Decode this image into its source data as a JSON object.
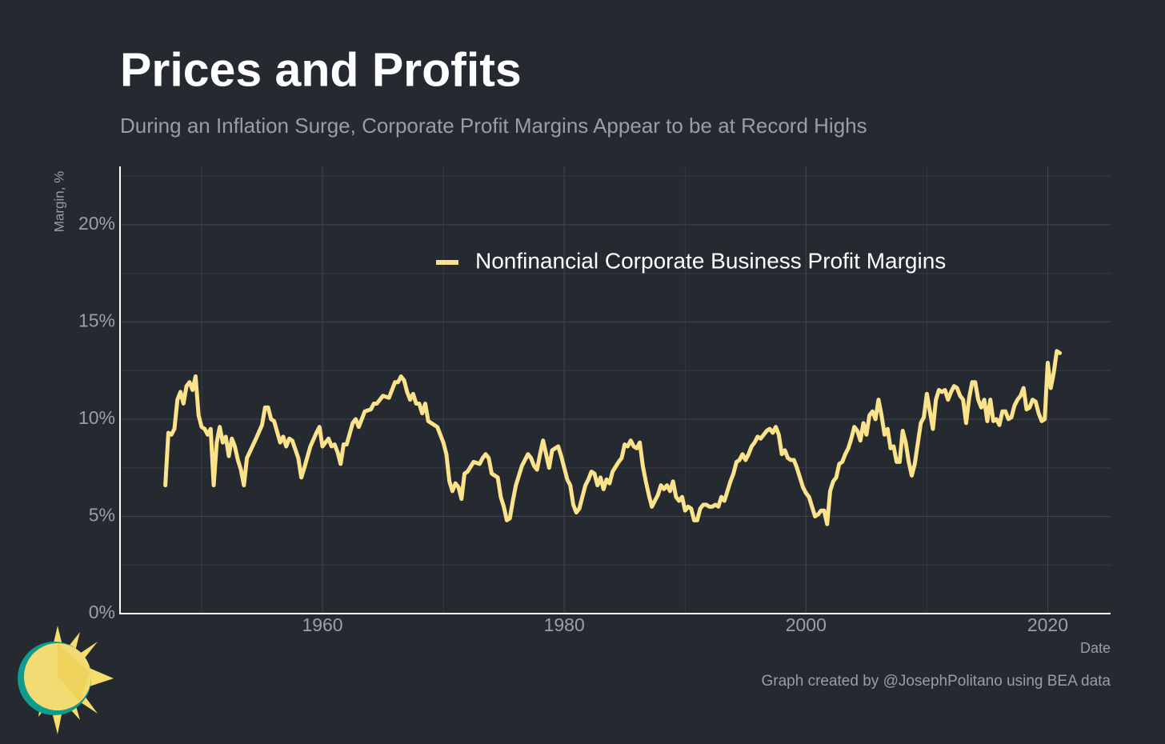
{
  "chart_data": {
    "type": "line",
    "title": "Prices and Profits",
    "subtitle": "During an Inflation Surge, Corporate Profit Margins Appear to be at Record Highs",
    "y_label": "Margin, %",
    "x_label": "Date",
    "caption": "Graph created by @JosephPolitano using BEA data",
    "xlim": [
      1943.25,
      2025.2
    ],
    "ylim": [
      0,
      23
    ],
    "xticks": [
      1960,
      1980,
      2000,
      2020
    ],
    "x_minor_grid": [
      1950,
      1970,
      1990,
      2010
    ],
    "yticks": [
      {
        "value": 0,
        "label": "0%"
      },
      {
        "value": 5,
        "label": "5%"
      },
      {
        "value": 10,
        "label": "10%"
      },
      {
        "value": 15,
        "label": "15%"
      },
      {
        "value": 20,
        "label": "20%"
      }
    ],
    "y_minor_grid": [
      2.5,
      7.5,
      12.5,
      17.5,
      22.5
    ],
    "grid": true,
    "legend": "top-center",
    "x": [
      1947,
      1947.25,
      1947.5,
      1947.75,
      1948,
      1948.25,
      1948.5,
      1948.75,
      1949,
      1949.25,
      1949.5,
      1949.75,
      1950,
      1950.25,
      1950.5,
      1950.75,
      1951,
      1951.25,
      1951.5,
      1951.75,
      1952,
      1952.25,
      1952.5,
      1952.75,
      1953,
      1953.25,
      1953.5,
      1953.75,
      1954.5,
      1955,
      1955.25,
      1955.5,
      1955.75,
      1956,
      1956.5,
      1956.75,
      1957,
      1957.25,
      1957.5,
      1958,
      1958.25,
      1958.5,
      1959,
      1959.5,
      1959.75,
      1960,
      1960.25,
      1960.5,
      1960.75,
      1961,
      1961.25,
      1961.5,
      1961.75,
      1962,
      1962.5,
      1962.75,
      1963,
      1963.5,
      1964,
      1964.25,
      1964.5,
      1965,
      1965.5,
      1966,
      1966.25,
      1966.5,
      1966.75,
      1967,
      1967.25,
      1967.5,
      1967.75,
      1968,
      1968.25,
      1968.5,
      1968.75,
      1969.5,
      1970,
      1970.25,
      1970.5,
      1970.75,
      1971,
      1971.25,
      1971.5,
      1971.75,
      1972,
      1972.5,
      1973,
      1973.25,
      1973.5,
      1973.75,
      1974,
      1974.5,
      1974.75,
      1975,
      1975.25,
      1975.5,
      1975.75,
      1976,
      1976.5,
      1977,
      1977.25,
      1977.5,
      1977.75,
      1978,
      1978.25,
      1978.5,
      1978.75,
      1979,
      1979.5,
      1979.75,
      1980,
      1980.25,
      1980.5,
      1980.75,
      1981,
      1981.25,
      1981.5,
      1981.75,
      1982,
      1982.25,
      1982.5,
      1982.75,
      1983,
      1983.25,
      1983.5,
      1983.75,
      1984,
      1984.5,
      1984.75,
      1985,
      1985.25,
      1985.5,
      1985.75,
      1986,
      1986.25,
      1986.5,
      1986.75,
      1987,
      1987.25,
      1987.5,
      1987.75,
      1988,
      1988.25,
      1988.5,
      1988.75,
      1989,
      1989.25,
      1989.5,
      1989.75,
      1990,
      1990.25,
      1990.5,
      1990.75,
      1991,
      1991.25,
      1991.5,
      1991.75,
      1992,
      1992.25,
      1992.5,
      1992.75,
      1993,
      1993.25,
      1993.5,
      1993.75,
      1994,
      1994.25,
      1994.5,
      1994.75,
      1995,
      1995.25,
      1995.5,
      1995.75,
      1996,
      1996.25,
      1996.5,
      1996.75,
      1997,
      1997.25,
      1997.5,
      1997.75,
      1998,
      1998.25,
      1998.5,
      1998.75,
      1999,
      1999.25,
      1999.5,
      1999.75,
      2000,
      2000.25,
      2000.5,
      2000.75,
      2001,
      2001.25,
      2001.5,
      2001.75,
      2002,
      2002.25,
      2002.5,
      2002.75,
      2003,
      2003.25,
      2003.5,
      2003.75,
      2004,
      2004.25,
      2004.5,
      2004.75,
      2005,
      2005.25,
      2005.5,
      2005.75,
      2006,
      2006.25,
      2006.5,
      2006.75,
      2007,
      2007.25,
      2007.5,
      2007.75,
      2008,
      2008.25,
      2008.5,
      2008.75,
      2009,
      2009.5,
      2009.75,
      2010,
      2010.25,
      2010.5,
      2010.75,
      2011,
      2011.25,
      2011.5,
      2011.75,
      2012,
      2012.25,
      2012.5,
      2012.75,
      2013,
      2013.25,
      2013.5,
      2013.75,
      2014,
      2014.25,
      2014.5,
      2014.75,
      2015,
      2015.25,
      2015.5,
      2015.75,
      2016,
      2016.25,
      2016.5,
      2016.75,
      2017,
      2017.25,
      2017.5,
      2017.75,
      2018,
      2018.25,
      2018.5,
      2018.75,
      2019,
      2019.25,
      2019.5,
      2019.75,
      2020,
      2020.25,
      2020.5,
      2020.75,
      2021
    ],
    "series": [
      {
        "name": "Nonfinancial Corporate Business Profit Margins",
        "color": "#fbe38c",
        "values": [
          6.6,
          9.3,
          9.2,
          9.5,
          11.0,
          11.4,
          10.8,
          11.7,
          11.9,
          11.5,
          12.2,
          10.2,
          9.6,
          9.5,
          9.2,
          9.5,
          6.6,
          8.8,
          9.6,
          8.8,
          9.1,
          8.1,
          9.0,
          8.6,
          7.9,
          7.4,
          6.6,
          8.0,
          9.0,
          9.7,
          10.6,
          10.6,
          10.0,
          9.9,
          8.8,
          9.1,
          8.6,
          9.0,
          8.9,
          8.0,
          7.0,
          7.5,
          8.6,
          9.3,
          9.6,
          8.6,
          8.8,
          9.0,
          8.6,
          8.7,
          8.3,
          7.7,
          8.7,
          8.7,
          9.8,
          10.0,
          9.6,
          10.4,
          10.5,
          10.8,
          10.8,
          11.2,
          11.1,
          11.9,
          11.9,
          12.2,
          12.0,
          11.4,
          11.0,
          11.3,
          10.8,
          10.8,
          10.3,
          10.8,
          9.9,
          9.6,
          8.8,
          8.2,
          6.8,
          6.3,
          6.7,
          6.5,
          5.9,
          7.2,
          7.3,
          7.8,
          7.7,
          8.0,
          8.2,
          8.0,
          7.2,
          7.0,
          6.0,
          5.5,
          4.8,
          4.9,
          5.8,
          6.6,
          7.6,
          8.2,
          8.0,
          7.6,
          7.4,
          8.2,
          8.9,
          8.2,
          7.5,
          8.4,
          8.6,
          8.1,
          7.5,
          6.9,
          6.6,
          5.6,
          5.2,
          5.4,
          6.0,
          6.6,
          6.9,
          7.3,
          7.2,
          6.6,
          7.0,
          6.4,
          6.9,
          6.7,
          7.3,
          7.8,
          8.0,
          8.7,
          8.6,
          8.9,
          8.6,
          8.5,
          8.8,
          7.6,
          6.8,
          6.1,
          5.5,
          5.8,
          6.1,
          6.6,
          6.4,
          6.6,
          6.3,
          6.8,
          6.0,
          5.8,
          6.0,
          5.3,
          5.5,
          5.4,
          4.8,
          4.8,
          5.4,
          5.6,
          5.6,
          5.5,
          5.5,
          5.6,
          5.5,
          6.0,
          5.8,
          6.3,
          6.8,
          7.2,
          7.8,
          7.9,
          8.2,
          7.9,
          8.2,
          8.6,
          8.8,
          9.1,
          9.0,
          9.2,
          9.4,
          9.5,
          9.3,
          9.6,
          9.2,
          8.2,
          8.4,
          8.0,
          7.9,
          7.9,
          7.5,
          7.0,
          6.5,
          6.2,
          6.0,
          5.5,
          5.0,
          5.1,
          5.3,
          5.3,
          4.6,
          6.3,
          6.8,
          7.0,
          7.7,
          7.8,
          8.2,
          8.5,
          9.0,
          9.6,
          9.4,
          8.9,
          9.8,
          9.2,
          10.2,
          10.4,
          10.0,
          11.0,
          10.2,
          9.2,
          9.5,
          8.5,
          8.6,
          7.8,
          7.8,
          9.4,
          8.8,
          7.8,
          7.1,
          7.7,
          9.8,
          10.1,
          11.3,
          10.4,
          9.5,
          11.0,
          11.5,
          11.4,
          11.5,
          11.0,
          11.4,
          11.7,
          11.6,
          11.2,
          11.0,
          9.8,
          11.1,
          11.9,
          11.9,
          11.0,
          10.6,
          11.0,
          9.9,
          11.0,
          9.9,
          10.0,
          9.7,
          10.4,
          10.4,
          10.0,
          10.1,
          10.7,
          11.0,
          11.2,
          11.6,
          10.5,
          10.6,
          11.0,
          10.9,
          10.3,
          9.9,
          10.0,
          12.9,
          11.6,
          12.4,
          13.5,
          13.4
        ]
      }
    ]
  }
}
